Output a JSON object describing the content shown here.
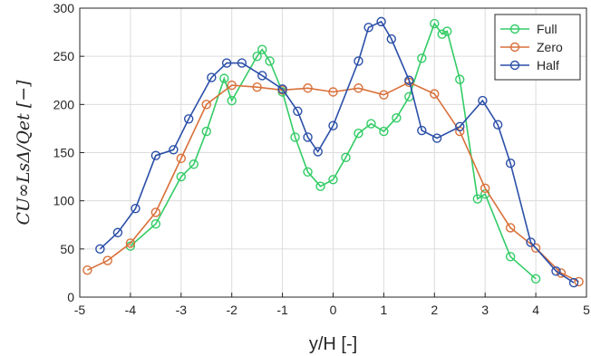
{
  "chart_data": {
    "type": "line",
    "title": "",
    "xlabel": "y/H [-]",
    "ylabel": "CU∞LsΔ/Qet [−]",
    "xlim": [
      -5,
      5
    ],
    "ylim": [
      0,
      300
    ],
    "xticks": [
      -5,
      -4,
      -3,
      -2,
      -1,
      0,
      1,
      2,
      3,
      4,
      5
    ],
    "yticks": [
      0,
      50,
      100,
      150,
      200,
      250,
      300
    ],
    "xtick_labels": [
      "-5",
      "-4",
      "-3",
      "-2",
      "-1",
      "0",
      "1",
      "2",
      "3",
      "4",
      "5"
    ],
    "ytick_labels": [
      "0",
      "50",
      "100",
      "150",
      "200",
      "250",
      "300"
    ],
    "grid": true,
    "legend_position": "top-right",
    "series": [
      {
        "name": "Full",
        "color": "#33cc66",
        "x": [
          -4.0,
          -3.5,
          -3.0,
          -2.75,
          -2.5,
          -2.15,
          -2.0,
          -1.5,
          -1.4,
          -1.25,
          -1.0,
          -0.75,
          -0.5,
          -0.25,
          0.0,
          0.25,
          0.5,
          0.75,
          1.0,
          1.25,
          1.5,
          1.75,
          2.0,
          2.15,
          2.25,
          2.5,
          2.85,
          3.0,
          3.5,
          4.0
        ],
        "y": [
          53,
          76,
          125,
          138,
          172,
          227,
          204,
          250,
          257,
          245,
          213,
          166,
          130,
          115,
          122,
          145,
          170,
          180,
          172,
          186,
          208,
          248,
          284,
          273,
          276,
          226,
          102,
          107,
          42,
          19
        ]
      },
      {
        "name": "Zero",
        "color": "#d9703a",
        "x": [
          -4.85,
          -4.45,
          -4.0,
          -3.5,
          -3.0,
          -2.5,
          -2.0,
          -1.5,
          -1.0,
          -0.5,
          0.0,
          0.5,
          1.0,
          1.5,
          2.0,
          2.5,
          3.0,
          3.5,
          4.0,
          4.5,
          4.85
        ],
        "y": [
          28,
          38,
          56,
          88,
          144,
          200,
          220,
          218,
          215,
          217,
          213,
          217,
          210,
          223,
          211,
          172,
          113,
          72,
          51,
          25,
          16
        ]
      },
      {
        "name": "Half",
        "color": "#2b4fa8",
        "x": [
          -4.6,
          -4.25,
          -3.9,
          -3.5,
          -3.15,
          -2.85,
          -2.4,
          -2.1,
          -1.8,
          -1.4,
          -1.0,
          -0.7,
          -0.5,
          -0.3,
          0.0,
          0.5,
          0.7,
          0.95,
          1.15,
          1.5,
          1.75,
          2.05,
          2.5,
          2.95,
          3.25,
          3.5,
          3.9,
          4.4,
          4.75
        ],
        "y": [
          50,
          67,
          92,
          147,
          153,
          185,
          228,
          243,
          243,
          230,
          216,
          193,
          166,
          151,
          178,
          245,
          280,
          286,
          268,
          225,
          173,
          165,
          177,
          204,
          179,
          139,
          57,
          27,
          15
        ]
      }
    ]
  }
}
